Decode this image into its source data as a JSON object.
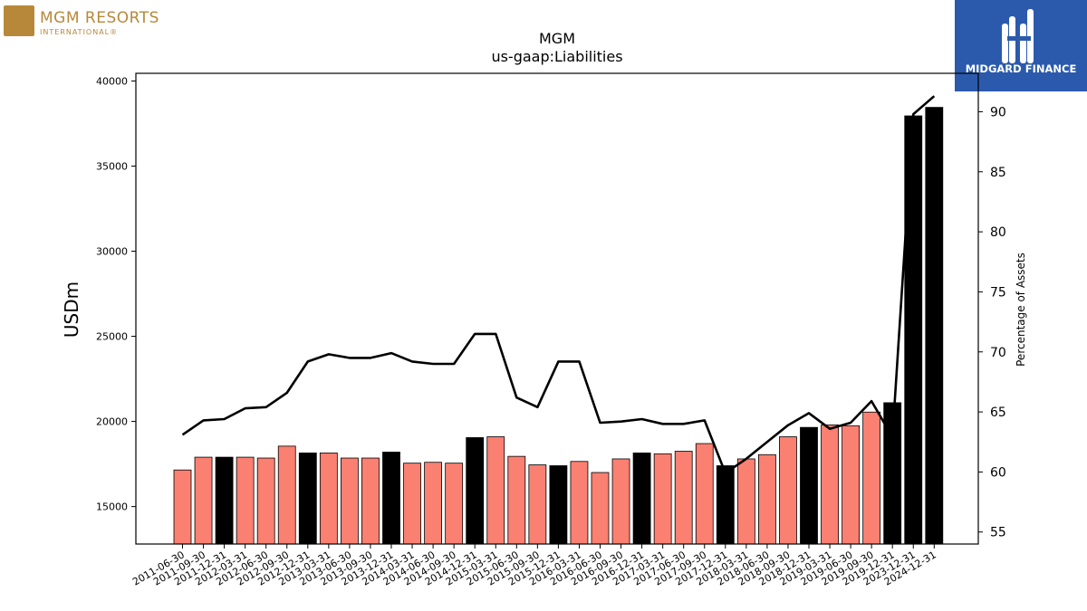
{
  "logos": {
    "company_name": "MGM RESORTS",
    "company_sub": "INTERNATIONAL®",
    "publisher": "MIDGARD FINANCE"
  },
  "chart_data": {
    "type": "bar",
    "title": "MGM",
    "subtitle": "us-gaap:Liabilities",
    "ylabel": "USDm",
    "y2label": "Percentage of Assets",
    "ylim": [
      12800,
      40450
    ],
    "y2lim": [
      54,
      93.2
    ],
    "yticks": [
      15000,
      20000,
      25000,
      30000,
      35000,
      40000
    ],
    "y2ticks": [
      55,
      60,
      65,
      70,
      75,
      80,
      85,
      90
    ],
    "colors": {
      "quarter": "#fa8072",
      "year_end": "#000000",
      "line": "#000000"
    },
    "categories": [
      "2011-06-30",
      "2011-09-30",
      "2011-12-31",
      "2012-03-31",
      "2012-06-30",
      "2012-09-30",
      "2012-12-31",
      "2013-03-31",
      "2013-06-30",
      "2013-09-30",
      "2013-12-31",
      "2014-03-31",
      "2014-06-30",
      "2014-09-30",
      "2014-12-31",
      "2015-03-31",
      "2015-06-30",
      "2015-09-30",
      "2015-12-31",
      "2016-03-31",
      "2016-06-30",
      "2016-09-30",
      "2016-12-31",
      "2017-03-31",
      "2017-06-30",
      "2017-09-30",
      "2017-12-31",
      "2018-03-31",
      "2018-06-30",
      "2018-09-30",
      "2018-12-31",
      "2019-03-31",
      "2019-06-30",
      "2019-09-30",
      "2019-12-31",
      "2023-12-31",
      "2024-12-31"
    ],
    "series": [
      {
        "kind": "bar",
        "values": [
          17150,
          17900,
          17900,
          17900,
          17850,
          18550,
          18150,
          18150,
          17850,
          17850,
          18200,
          17550,
          17600,
          17550,
          19050,
          19100,
          17950,
          17450,
          17400,
          17650,
          17000,
          17800,
          18150,
          18100,
          18250,
          18700,
          17400,
          17800,
          18050,
          19100,
          19650,
          19800,
          19750,
          20550,
          21100,
          37950,
          38450
        ],
        "year_end": [
          false,
          false,
          true,
          false,
          false,
          false,
          true,
          false,
          false,
          false,
          true,
          false,
          false,
          false,
          true,
          false,
          false,
          false,
          true,
          false,
          false,
          false,
          true,
          false,
          false,
          false,
          true,
          false,
          false,
          false,
          true,
          false,
          false,
          false,
          true,
          true,
          true
        ]
      },
      {
        "kind": "line",
        "axis": "right",
        "values": [
          63.1,
          64.3,
          64.4,
          65.3,
          65.4,
          66.6,
          69.2,
          69.8,
          69.5,
          69.5,
          69.9,
          69.2,
          69.0,
          69.0,
          71.5,
          71.5,
          66.2,
          65.4,
          69.2,
          69.2,
          64.1,
          64.2,
          64.4,
          64.0,
          64.0,
          64.3,
          59.9,
          61.1,
          62.5,
          63.9,
          64.9,
          63.6,
          64.1,
          65.9,
          62.9,
          89.8,
          91.3
        ]
      }
    ]
  }
}
